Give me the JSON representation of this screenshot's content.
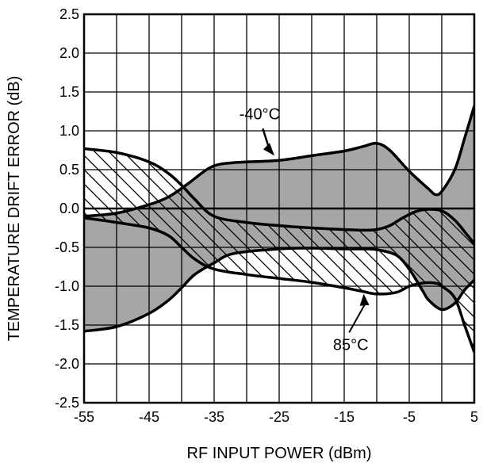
{
  "chart_data": {
    "type": "area",
    "title": "",
    "xlabel": "RF INPUT POWER (dBm)",
    "ylabel": "TEMPERATURE DRIFT ERROR (dB)",
    "xlim": [
      -55,
      5
    ],
    "ylim": [
      -2.5,
      2.5
    ],
    "xticks": [
      -55,
      -45,
      -35,
      -25,
      -15,
      -5,
      5
    ],
    "xtick_labels": [
      "-55",
      "-45",
      "-35",
      "-25",
      "-15",
      "-5",
      "5"
    ],
    "yticks": [
      2.5,
      2.0,
      1.5,
      1.0,
      0.5,
      0.0,
      -0.5,
      -1.0,
      -1.5,
      -2.0,
      -2.5
    ],
    "ytick_labels": [
      "2.5",
      "2.0",
      "1.5",
      "1.0",
      "0.5",
      "0.0",
      "-0.5",
      "-1.0",
      "-1.5",
      "-2.0",
      "-2.5"
    ],
    "grid": true,
    "series": [
      {
        "name": "-40°C",
        "fill": "gray",
        "upper": {
          "x": [
            -55,
            -50,
            -45,
            -42,
            -39,
            -37,
            -35,
            -32,
            -25,
            -20,
            -15,
            -12,
            -10,
            -8,
            -5,
            -2,
            -1,
            0,
            2,
            3.5,
            5
          ],
          "y": [
            -0.1,
            -0.06,
            0.05,
            0.15,
            0.32,
            0.45,
            0.55,
            0.59,
            0.62,
            0.68,
            0.74,
            0.8,
            0.84,
            0.75,
            0.48,
            0.25,
            0.18,
            0.22,
            0.5,
            0.9,
            1.32
          ]
        },
        "lower": {
          "x": [
            -55,
            -50,
            -45,
            -42,
            -40,
            -38,
            -35,
            -32,
            -25,
            -20,
            -15,
            -12,
            -10,
            -7,
            -5,
            -3,
            -2,
            0,
            2,
            3.5,
            5
          ],
          "y": [
            -1.58,
            -1.52,
            -1.35,
            -1.18,
            -1.02,
            -0.85,
            -0.7,
            -0.58,
            -0.52,
            -0.51,
            -0.52,
            -0.52,
            -0.53,
            -0.6,
            -0.78,
            -1.05,
            -1.18,
            -1.3,
            -1.22,
            -1.05,
            -0.92
          ]
        }
      },
      {
        "name": "85°C",
        "fill": "hatched",
        "upper": {
          "x": [
            -55,
            -50,
            -45,
            -42,
            -40,
            -38,
            -35,
            -30,
            -25,
            -20,
            -15,
            -12,
            -10,
            -8,
            -6,
            -4,
            -2,
            0,
            2,
            4,
            5
          ],
          "y": [
            0.77,
            0.72,
            0.6,
            0.45,
            0.3,
            0.12,
            -0.1,
            -0.18,
            -0.22,
            -0.25,
            -0.27,
            -0.28,
            -0.27,
            -0.22,
            -0.12,
            -0.04,
            -0.01,
            -0.03,
            -0.15,
            -0.35,
            -0.45
          ]
        },
        "lower": {
          "x": [
            -55,
            -50,
            -45,
            -42,
            -40,
            -38,
            -35,
            -30,
            -25,
            -20,
            -15,
            -12,
            -10,
            -7,
            -5,
            -3,
            -1,
            0,
            2,
            3.5,
            5
          ],
          "y": [
            -0.12,
            -0.18,
            -0.25,
            -0.35,
            -0.5,
            -0.65,
            -0.78,
            -0.85,
            -0.9,
            -0.95,
            -1.02,
            -1.07,
            -1.1,
            -1.08,
            -1.0,
            -0.96,
            -0.96,
            -1.0,
            -1.15,
            -1.5,
            -1.85
          ]
        }
      }
    ],
    "annotations": [
      {
        "text": "-40°C",
        "x": -28,
        "y": 1.15
      },
      {
        "text": "85°C",
        "x": -14,
        "y": -1.82
      }
    ],
    "colors": {
      "fill": "#a6a6a6",
      "line": "#000000",
      "grid": "#000000"
    }
  }
}
